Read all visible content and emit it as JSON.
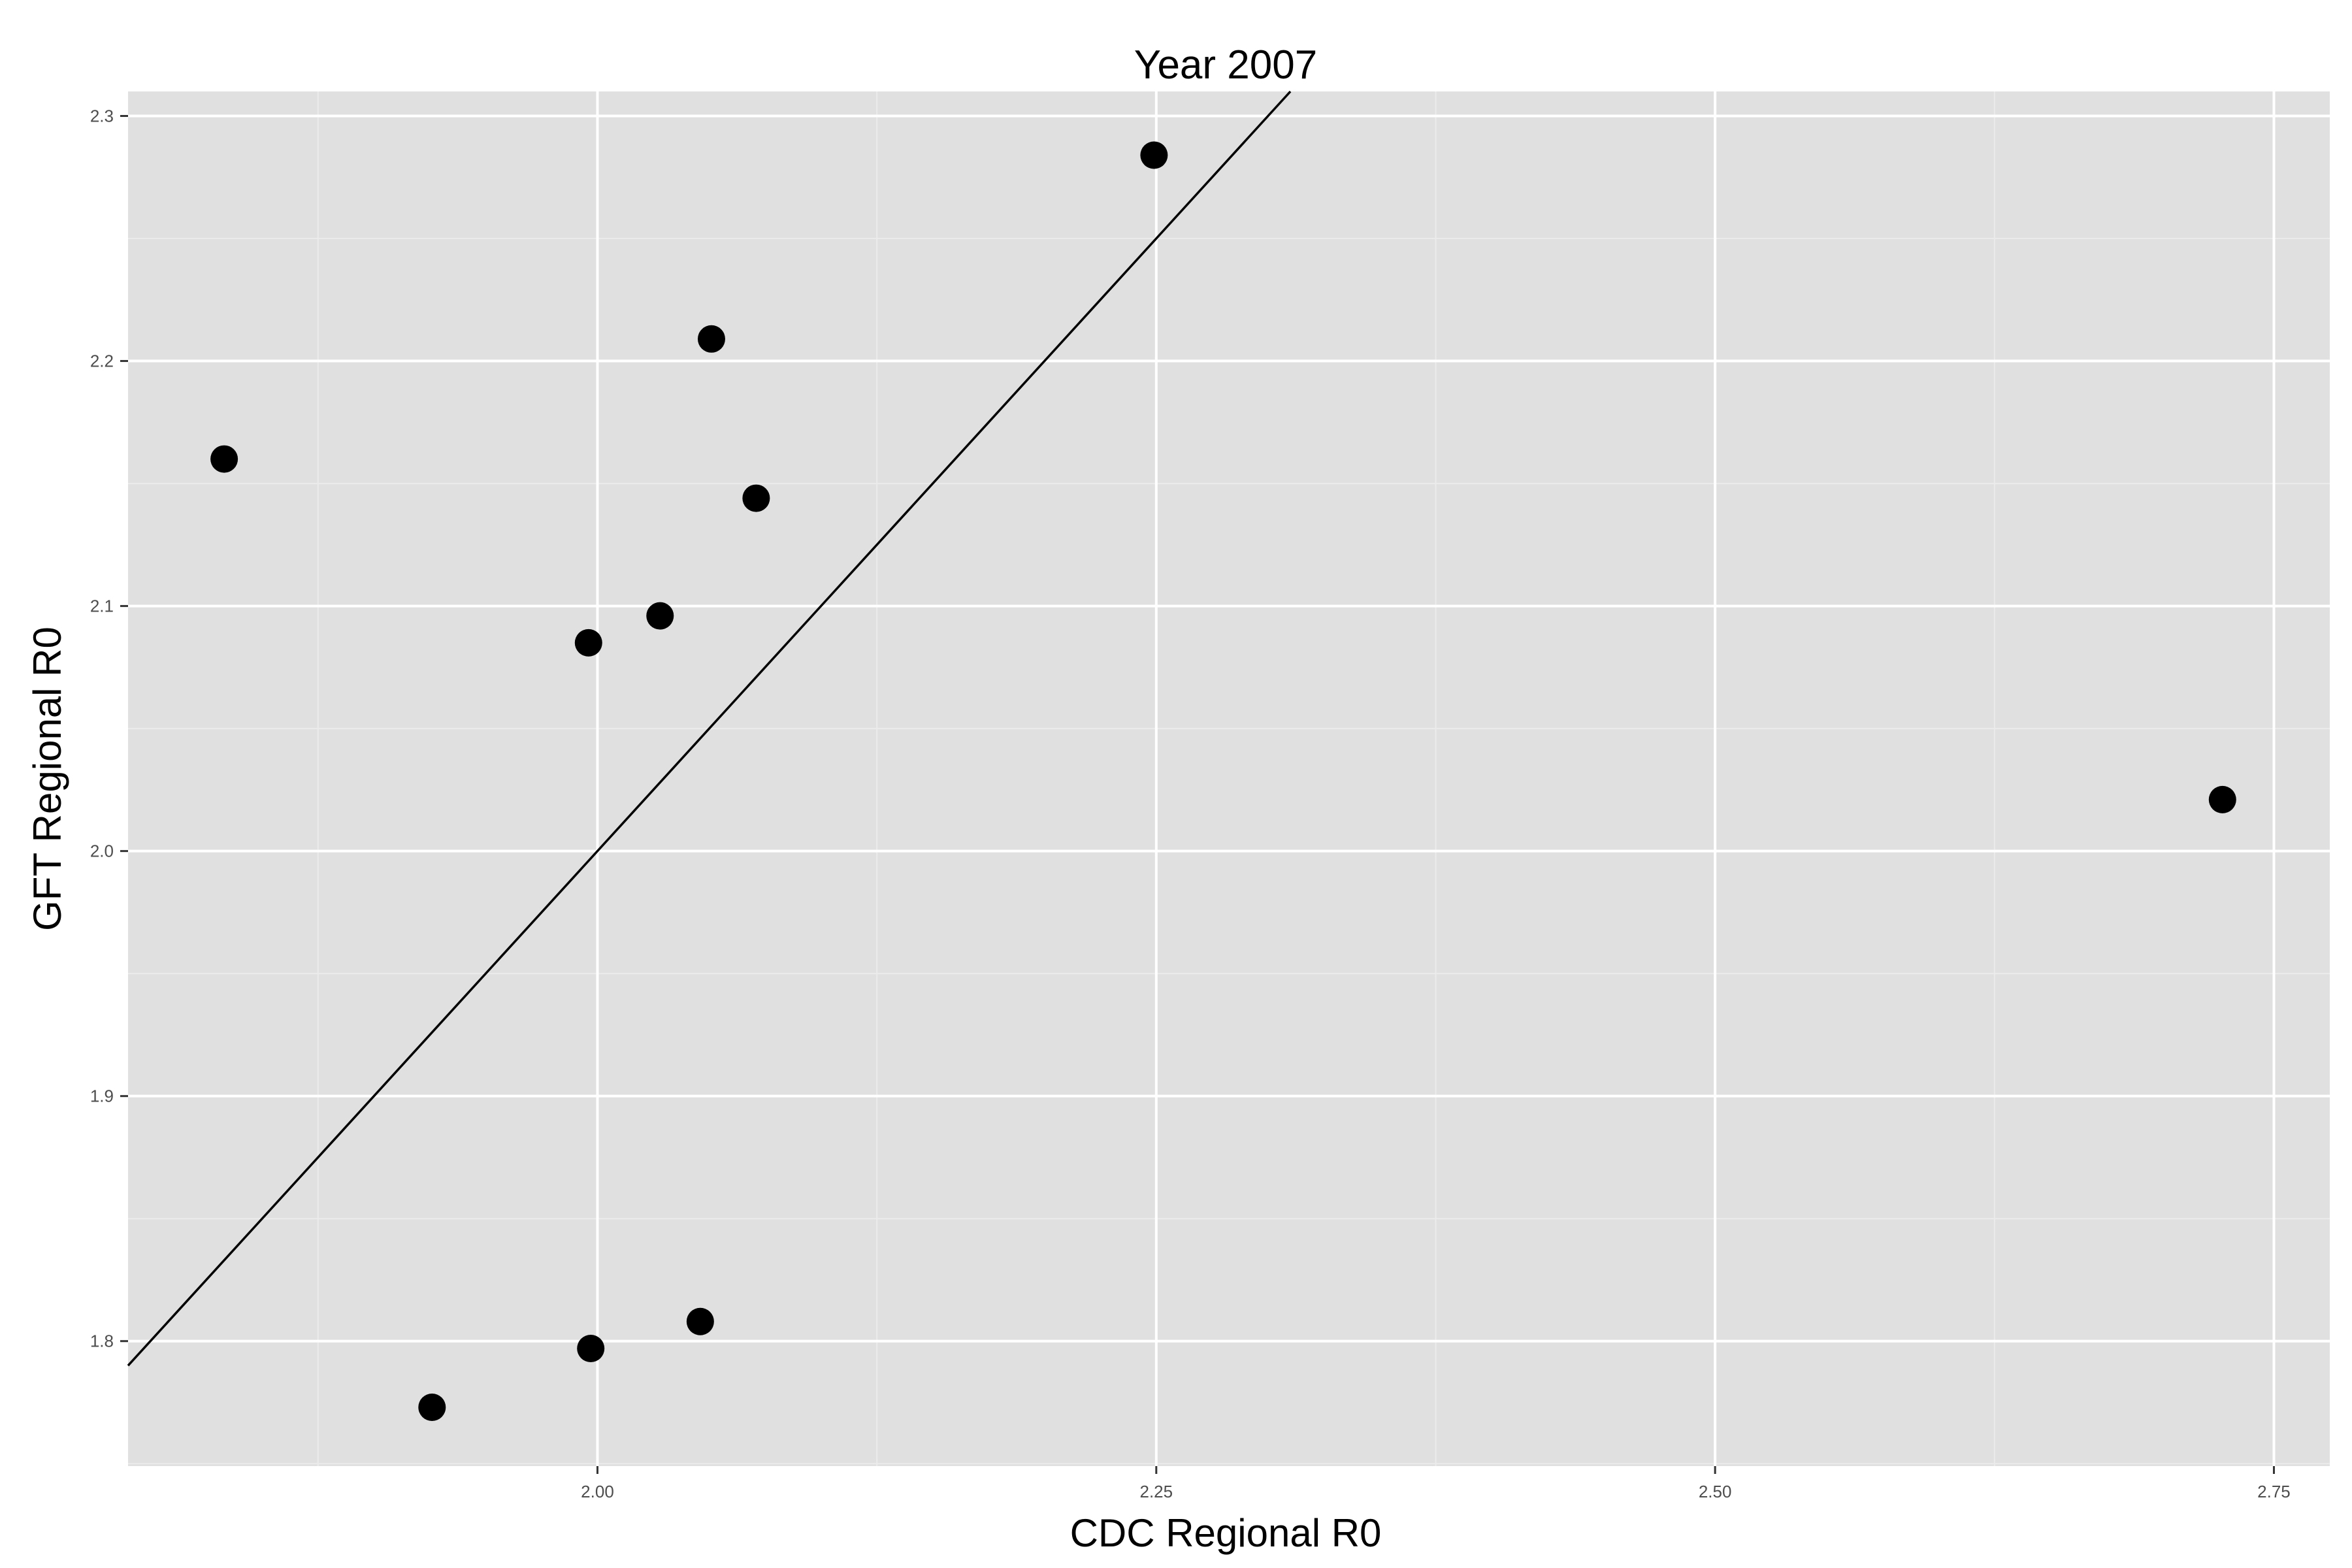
{
  "chart_data": {
    "type": "scatter",
    "title": "Year 2007",
    "xlabel": "CDC Regional R0",
    "ylabel": "GFT Regional R0",
    "xlim": [
      1.79,
      2.775
    ],
    "ylim": [
      1.749,
      2.31
    ],
    "x_ticks": [
      2.0,
      2.25,
      2.5,
      2.75
    ],
    "x_tick_labels": [
      "2.00",
      "2.25",
      "2.50",
      "2.75"
    ],
    "x_minor_ticks": [
      1.875,
      2.125,
      2.375,
      2.625
    ],
    "y_ticks": [
      1.8,
      1.9,
      2.0,
      2.1,
      2.2,
      2.3
    ],
    "y_tick_labels": [
      "1.8",
      "1.9",
      "2.0",
      "2.1",
      "2.2",
      "2.3"
    ],
    "y_minor_ticks": [
      1.75,
      1.85,
      1.95,
      2.05,
      2.15,
      2.25
    ],
    "grid": true,
    "reference_line": {
      "type": "identity",
      "slope": 1,
      "intercept": 0
    },
    "points": [
      {
        "x": 1.833,
        "y": 2.16
      },
      {
        "x": 1.926,
        "y": 1.773
      },
      {
        "x": 1.996,
        "y": 2.085
      },
      {
        "x": 1.997,
        "y": 1.797
      },
      {
        "x": 2.028,
        "y": 2.096
      },
      {
        "x": 2.046,
        "y": 1.808
      },
      {
        "x": 2.051,
        "y": 2.209
      },
      {
        "x": 2.071,
        "y": 2.144
      },
      {
        "x": 2.249,
        "y": 2.284
      },
      {
        "x": 2.727,
        "y": 2.021
      }
    ],
    "colors": {
      "panel_background": "#e0e0e0",
      "grid_major": "#ffffff",
      "grid_minor": "#ebebeb",
      "point": "#000000",
      "line": "#000000",
      "tick_label": "#4d4d4d"
    }
  }
}
